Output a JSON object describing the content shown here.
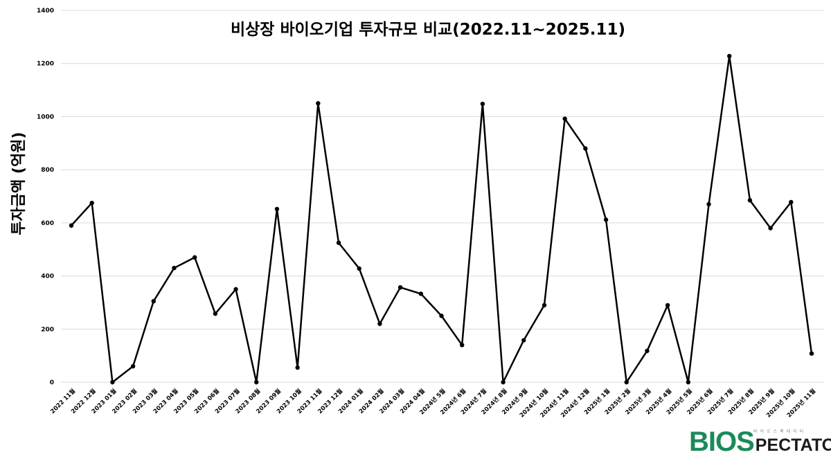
{
  "chart_data": {
    "type": "line",
    "title": "비상장 바이오기업 투자규모 비교(2022.11~2025.11)",
    "xlabel": "",
    "ylabel": "투자금액 (억원)",
    "ylim": [
      0,
      1400
    ],
    "yticks": [
      0,
      200,
      400,
      600,
      800,
      1000,
      1200,
      1400
    ],
    "grid": true,
    "line_color": "#000000",
    "categories": [
      "2022 11월",
      "2022 12월",
      "2023 01월",
      "2023 02월",
      "2023 03월",
      "2023 04월",
      "2023 05월",
      "2023 06월",
      "2023 07월",
      "2023 08월",
      "2023 09월",
      "2023 10월",
      "2023 11월",
      "2023 12월",
      "2024 01월",
      "2024 02월",
      "2024 03월",
      "2024 04월",
      "2024년 5월",
      "2024년 6월",
      "2024년 7월",
      "2024년 8월",
      "2024년 9월",
      "2024년 10월",
      "2024년 11월",
      "2024년 12월",
      "2025년 1월",
      "2025년 2월",
      "2025년 3월",
      "2025년 4월",
      "2025년 5월",
      "2025년 6월",
      "2025년 7월",
      "2025년 8월",
      "2025년 9월",
      "2025년 10월",
      "2025년 11월"
    ],
    "values": [
      590,
      675,
      0,
      60,
      305,
      430,
      470,
      258,
      350,
      0,
      652,
      55,
      1050,
      525,
      428,
      220,
      357,
      333,
      250,
      140,
      1048,
      0,
      158,
      290,
      992,
      880,
      612,
      0,
      118,
      290,
      0,
      670,
      1228,
      685,
      580,
      678,
      108
    ]
  },
  "logo": {
    "text": "BIOSPECTATOR",
    "big": "BIOS",
    "small": "PECTATOR",
    "sub": "바이오스펙테이터",
    "color": "#1a8a5a"
  }
}
